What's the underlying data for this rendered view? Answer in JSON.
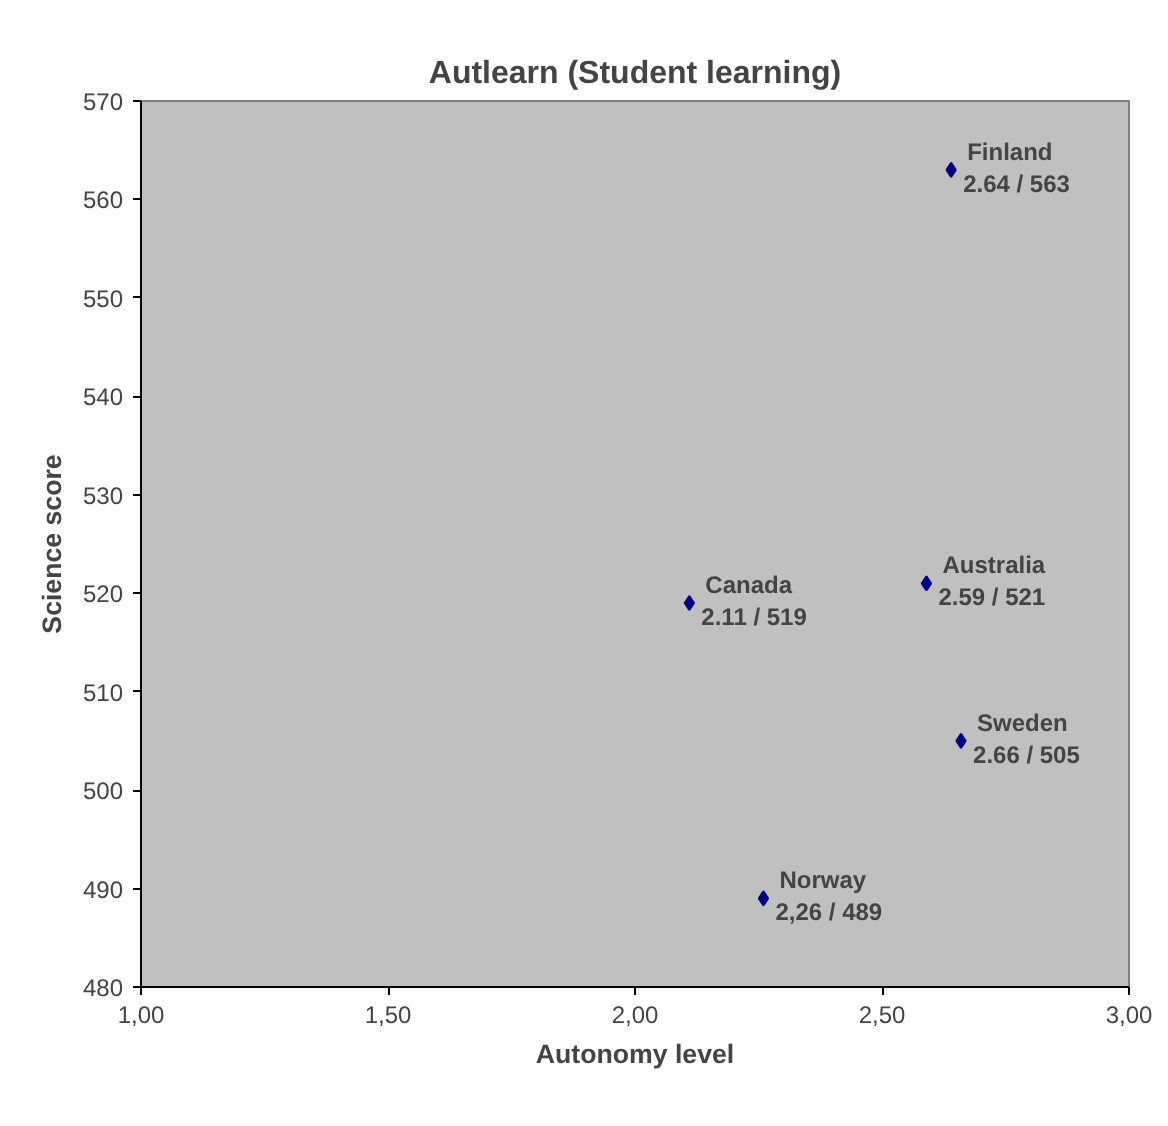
{
  "chart_data": {
    "type": "scatter",
    "title": "Autlearn (Student learning)",
    "xlabel": "Autonomy level",
    "ylabel": "Science score",
    "series": [
      {
        "color": "#000080",
        "x": [
          2.64,
          2.59,
          2.11,
          2.66,
          2.26
        ],
        "values": [
          563,
          521,
          519,
          505,
          489
        ],
        "value_labels": [
          "2.64 / 563",
          "2.59 / 521",
          "2.11 / 519",
          "2.66 / 505",
          "2,26 / 489"
        ]
      }
    ],
    "annotations": [
      {
        "text": "Finland",
        "x": 2.64,
        "y": 563
      },
      {
        "text": "Australia",
        "x": 2.59,
        "y": 521
      },
      {
        "text": "Canada",
        "x": 2.11,
        "y": 519
      },
      {
        "text": "Sweden",
        "x": 2.66,
        "y": 505
      },
      {
        "text": "Norway",
        "x": 2.26,
        "y": 489
      }
    ],
    "xlim": [
      1,
      3
    ],
    "ylim": [
      480,
      570
    ],
    "xticks": [
      {
        "value": 1,
        "label": "1,00"
      },
      {
        "value": 1.5,
        "label": "1,50"
      },
      {
        "value": 2,
        "label": "2,00"
      },
      {
        "value": 2.5,
        "label": "2,50"
      },
      {
        "value": 3,
        "label": "3,00"
      }
    ],
    "yticks": [
      480,
      490,
      500,
      510,
      520,
      530,
      540,
      550,
      560,
      570
    ],
    "marker": "diamond"
  }
}
